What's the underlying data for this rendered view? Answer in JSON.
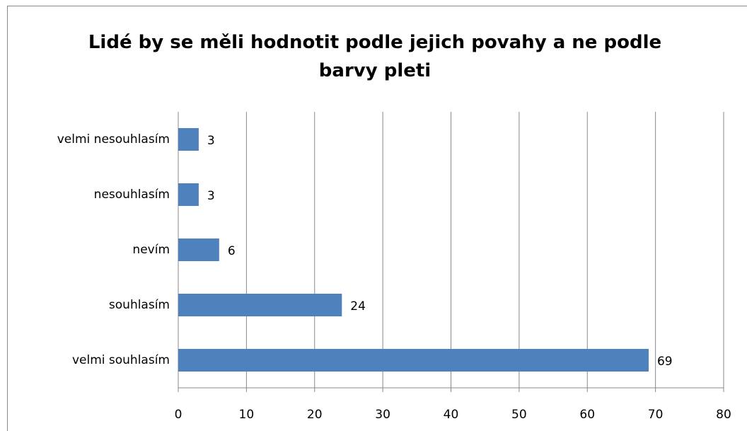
{
  "chart_data": {
    "type": "barh",
    "title": "Lidé by se měli hodnotit podle jejich povahy a ne podle barvy pleti",
    "categories": [
      "velmi nesouhlasím",
      "nesouhlasím",
      "nevím",
      "souhlasím",
      "velmi souhlasím"
    ],
    "values": [
      3,
      3,
      6,
      24,
      69
    ],
    "color": "#4f81bd",
    "xlim": [
      0,
      80
    ],
    "xticks": [
      0,
      10,
      20,
      30,
      40,
      50,
      60,
      70,
      80
    ],
    "grid": true
  }
}
